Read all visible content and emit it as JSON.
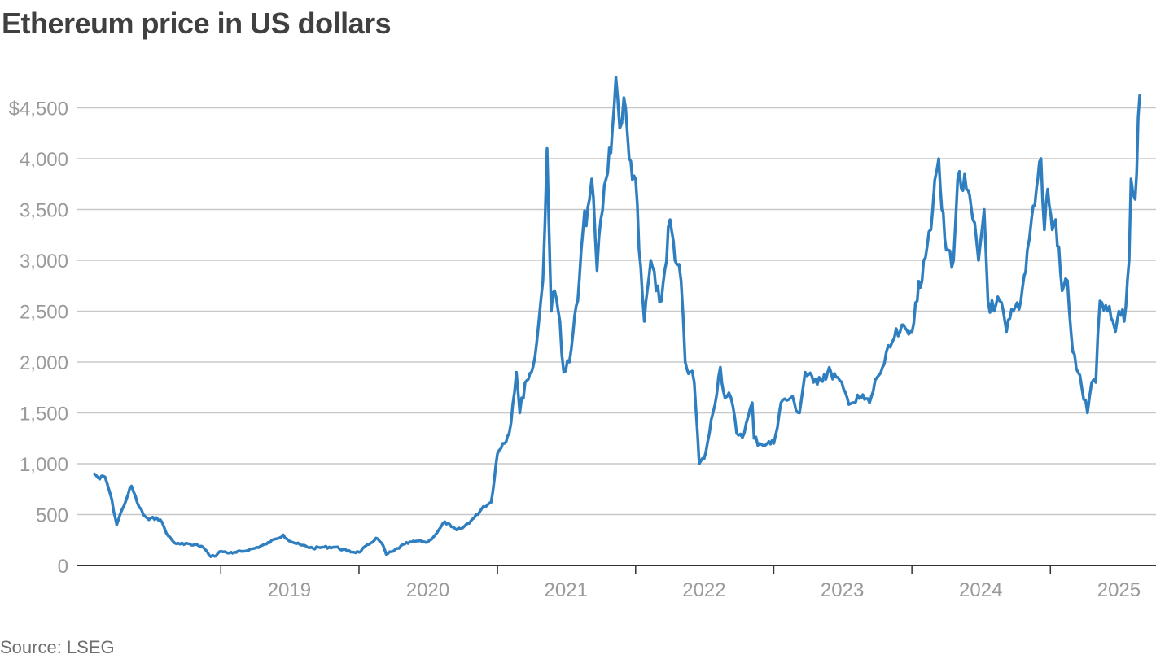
{
  "title": "Ethereum price in US dollars",
  "source": "Source: LSEG",
  "colors": {
    "line": "#2f7fc0",
    "grid": "#c8c8c8",
    "text": "#404040",
    "axis_text": "#9a9a9a"
  },
  "chart_data": {
    "type": "line",
    "title": "Ethereum price in US dollars",
    "xlabel": "",
    "ylabel": "",
    "ylim": [
      0,
      4800
    ],
    "xlim": [
      "2018-02-01",
      "2025-08-25"
    ],
    "y_ticks": [
      0,
      500,
      1000,
      1500,
      2000,
      2500,
      3000,
      3500,
      4000,
      4500
    ],
    "y_tick_labels": [
      "0",
      "500",
      "1,000",
      "1,500",
      "2,000",
      "2,500",
      "3,000",
      "3,500",
      "4,000",
      "$4,500"
    ],
    "x_ticks": [
      "2019",
      "2020",
      "2021",
      "2022",
      "2023",
      "2024",
      "2025"
    ],
    "grid": true,
    "legend": "none",
    "series": [
      {
        "x": [
          "2018-02-01",
          "2018-02-15",
          "2018-03-01",
          "2018-03-15",
          "2018-04-01",
          "2018-04-15",
          "2018-05-01",
          "2018-05-10",
          "2018-05-25",
          "2018-06-10",
          "2018-06-25",
          "2018-07-15",
          "2018-07-25",
          "2018-08-15",
          "2018-09-01",
          "2018-09-15",
          "2018-10-01",
          "2018-10-15",
          "2018-11-01",
          "2018-11-15",
          "2018-12-01",
          "2018-12-15",
          "2019-01-01",
          "2019-01-15",
          "2019-02-01",
          "2019-03-01",
          "2019-04-01",
          "2019-05-01",
          "2019-05-25",
          "2019-06-15",
          "2019-06-25",
          "2019-07-15",
          "2019-08-01",
          "2019-09-01",
          "2019-10-01",
          "2019-11-01",
          "2019-12-01",
          "2020-01-01",
          "2020-02-01",
          "2020-02-15",
          "2020-03-01",
          "2020-03-13",
          "2020-04-01",
          "2020-05-01",
          "2020-06-01",
          "2020-07-01",
          "2020-07-25",
          "2020-08-15",
          "2020-09-01",
          "2020-09-15",
          "2020-10-01",
          "2020-11-01",
          "2020-11-25",
          "2020-12-15",
          "2021-01-01",
          "2021-01-15",
          "2021-02-01",
          "2021-02-20",
          "2021-03-01",
          "2021-03-15",
          "2021-04-01",
          "2021-04-15",
          "2021-05-01",
          "2021-05-12",
          "2021-05-23",
          "2021-06-01",
          "2021-06-15",
          "2021-06-25",
          "2021-07-10",
          "2021-07-20",
          "2021-08-01",
          "2021-08-15",
          "2021-09-01",
          "2021-09-07",
          "2021-09-21",
          "2021-10-01",
          "2021-10-15",
          "2021-11-01",
          "2021-11-10",
          "2021-11-20",
          "2021-12-01",
          "2021-12-15",
          "2022-01-01",
          "2022-01-10",
          "2022-01-24",
          "2022-02-10",
          "2022-02-24",
          "2022-03-10",
          "2022-04-02",
          "2022-04-15",
          "2022-05-01",
          "2022-05-12",
          "2022-05-25",
          "2022-06-05",
          "2022-06-18",
          "2022-07-01",
          "2022-07-15",
          "2022-08-13",
          "2022-08-25",
          "2022-09-10",
          "2022-09-25",
          "2022-10-15",
          "2022-11-05",
          "2022-11-10",
          "2022-11-25",
          "2022-12-15",
          "2023-01-01",
          "2023-01-20",
          "2023-02-15",
          "2023-03-10",
          "2023-03-25",
          "2023-04-16",
          "2023-05-01",
          "2023-06-01",
          "2023-06-15",
          "2023-07-14",
          "2023-08-01",
          "2023-08-20",
          "2023-09-11",
          "2023-10-01",
          "2023-10-20",
          "2023-11-10",
          "2023-12-01",
          "2023-12-28",
          "2024-01-15",
          "2024-02-01",
          "2024-02-25",
          "2024-03-12",
          "2024-03-20",
          "2024-04-01",
          "2024-04-20",
          "2024-05-01",
          "2024-05-24",
          "2024-06-10",
          "2024-06-25",
          "2024-07-10",
          "2024-07-20",
          "2024-08-05",
          "2024-08-20",
          "2024-09-07",
          "2024-09-25",
          "2024-10-15",
          "2024-11-01",
          "2024-11-12",
          "2024-11-25",
          "2024-12-07",
          "2024-12-16",
          "2024-12-25",
          "2025-01-06",
          "2025-01-15",
          "2025-02-01",
          "2025-02-15",
          "2025-03-01",
          "2025-03-15",
          "2025-04-09",
          "2025-04-20",
          "2025-05-01",
          "2025-05-12",
          "2025-06-01",
          "2025-06-15",
          "2025-06-22",
          "2025-07-01",
          "2025-07-15",
          "2025-07-28",
          "2025-08-02",
          "2025-08-13",
          "2025-08-25"
        ],
        "y": [
          900,
          850,
          870,
          700,
          400,
          550,
          700,
          780,
          620,
          500,
          450,
          470,
          450,
          290,
          220,
          210,
          220,
          200,
          200,
          180,
          100,
          90,
          140,
          130,
          120,
          140,
          170,
          210,
          260,
          300,
          260,
          220,
          200,
          170,
          180,
          180,
          140,
          130,
          220,
          270,
          220,
          110,
          140,
          210,
          240,
          230,
          320,
          430,
          380,
          350,
          370,
          470,
          580,
          620,
          1100,
          1200,
          1300,
          1900,
          1500,
          1800,
          1900,
          2200,
          2800,
          4100,
          2500,
          2700,
          2400,
          1900,
          2000,
          2300,
          2600,
          3300,
          3600,
          3800,
          2900,
          3400,
          3800,
          4300,
          4800,
          4300,
          4600,
          4000,
          3800,
          3100,
          2400,
          3000,
          2700,
          2600,
          3400,
          3000,
          2800,
          2000,
          1900,
          1800,
          1000,
          1050,
          1300,
          1950,
          1650,
          1650,
          1300,
          1300,
          1600,
          1250,
          1200,
          1200,
          1200,
          1600,
          1650,
          1500,
          1900,
          1800,
          1850,
          1900,
          1850,
          1650,
          1600,
          1650,
          1600,
          1850,
          1980,
          2200,
          2300,
          2300,
          2600,
          3000,
          3500,
          4000,
          3500,
          3100,
          3000,
          3800,
          3700,
          3400,
          3000,
          3500,
          2600,
          2500,
          2600,
          2300,
          2500,
          2600,
          3100,
          3400,
          3700,
          4000,
          3300,
          3700,
          3300,
          3400,
          2700,
          2800,
          2100,
          1900,
          1500,
          1800,
          1800,
          2600,
          2500,
          2400,
          2300,
          2500,
          2400,
          3000,
          3800,
          3600,
          4620
        ]
      }
    ]
  }
}
